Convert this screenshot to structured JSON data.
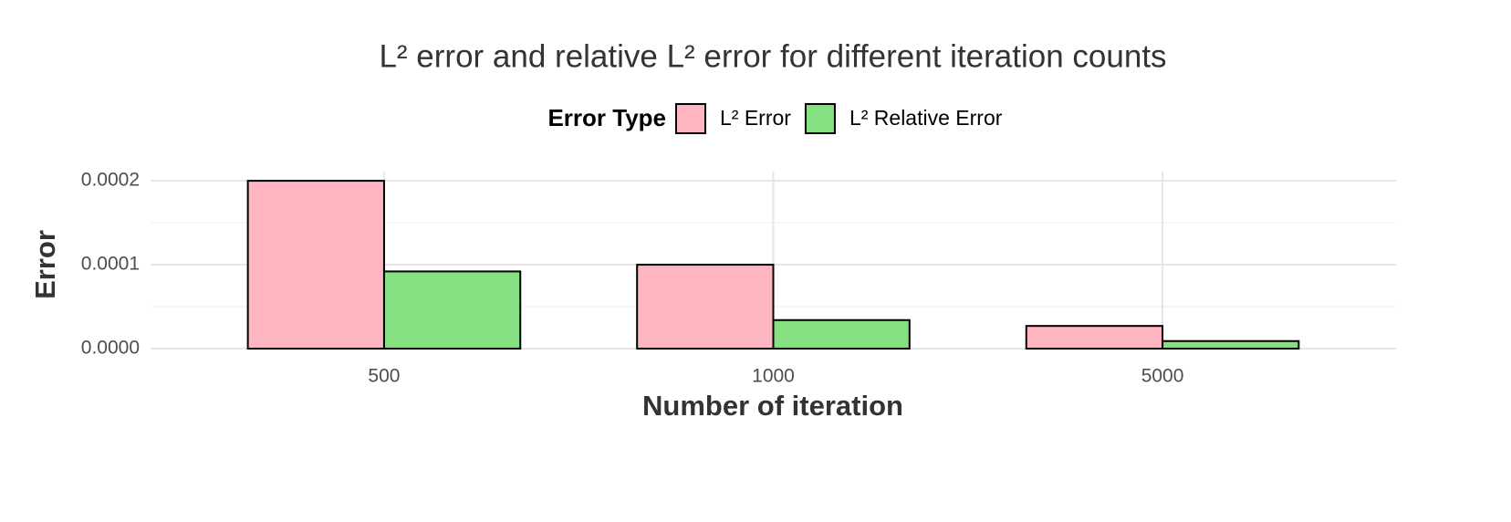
{
  "chart_data": {
    "type": "bar",
    "title": "L² error and relative L² error for different iteration counts",
    "legend_title": "Error Type",
    "legend_position": "top",
    "x_label": "Number of iteration",
    "y_label": "Error",
    "categories": [
      "500",
      "1000",
      "5000"
    ],
    "series": [
      {
        "name": "L² Error",
        "color": "#FFB6C1",
        "values": [
          0.0002,
          0.0001,
          2.7e-05
        ]
      },
      {
        "name": "L² Relative Error",
        "color": "#86E082",
        "values": [
          9.2e-05,
          3.4e-05,
          9e-06
        ]
      }
    ],
    "ylim": [
      0,
      0.000211
    ],
    "yticks": [
      {
        "value": 0,
        "label": "0.0000"
      },
      0.0001,
      0.0002
    ],
    "minor_yticks": [
      5e-05,
      0.00015
    ],
    "grid": true
  }
}
